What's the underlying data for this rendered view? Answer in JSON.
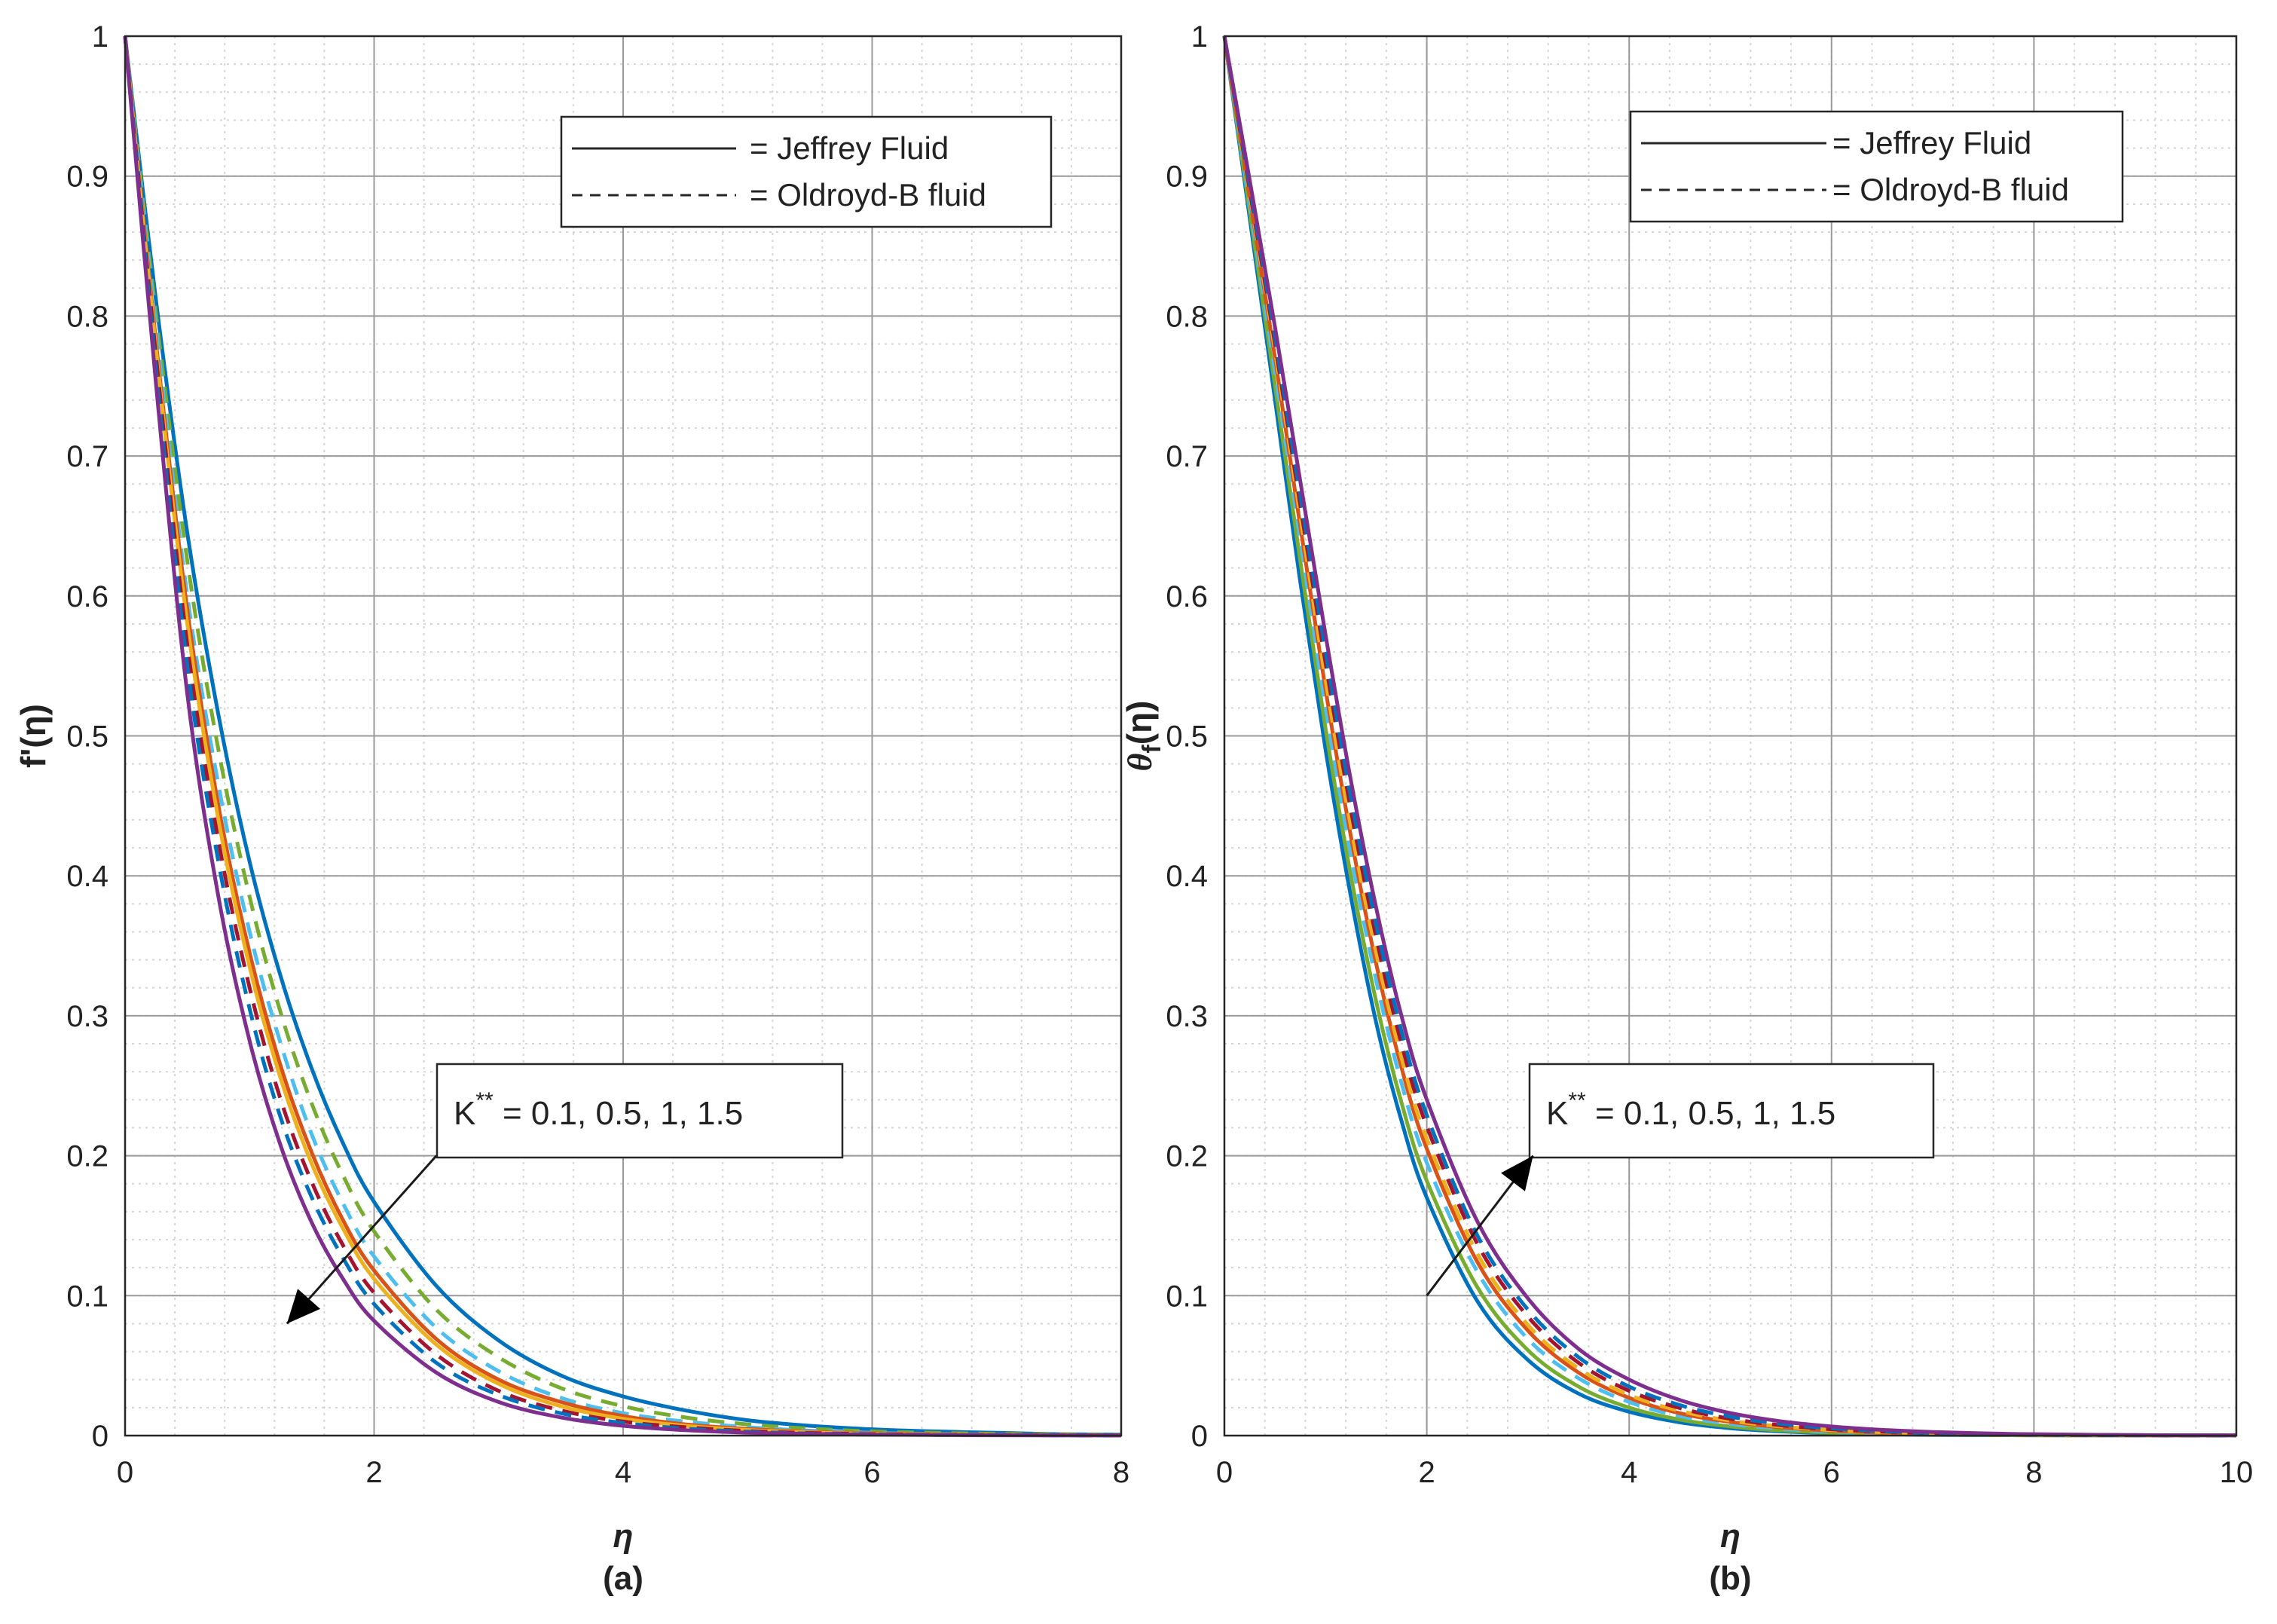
{
  "figure": {
    "panels": [
      "(a)",
      "(b)"
    ]
  },
  "chart_data": [
    {
      "type": "line",
      "panel_label": "(a)",
      "title": "",
      "xlabel": "η",
      "ylabel": "f'(η)",
      "xlim": [
        0,
        8
      ],
      "ylim": [
        0,
        1
      ],
      "xticks": [
        0,
        2,
        4,
        6,
        8
      ],
      "yticks": [
        0,
        0.1,
        0.2,
        0.3,
        0.4,
        0.5,
        0.6,
        0.7,
        0.8,
        0.9,
        1
      ],
      "grid": true,
      "minor_grid": true,
      "legend": {
        "position": "top-right",
        "entries": [
          {
            "style": "solid",
            "label": "= Jeffrey Fluid"
          },
          {
            "style": "dashed",
            "label": "= Oldroyd-B fluid"
          }
        ]
      },
      "annotation": {
        "text": "K** = 0.1, 0.5, 1, 1.5",
        "base": "K",
        "sup": "**",
        "rest": " = 0.1, 0.5, 1, 1.5",
        "arrow_from": [
          2.5,
          0.2
        ],
        "arrow_to": [
          1.3,
          0.08
        ]
      },
      "x": [
        0,
        0.25,
        0.5,
        0.75,
        1,
        1.25,
        1.5,
        1.75,
        2,
        2.5,
        3,
        3.5,
        4,
        4.5,
        5,
        5.5,
        6,
        6.5,
        7,
        7.5,
        8
      ],
      "series": [
        {
          "name": "Jeffrey K**=0.1",
          "style": "solid",
          "color": "#0072bd",
          "values": [
            1,
            0.81,
            0.645,
            0.515,
            0.41,
            0.328,
            0.262,
            0.209,
            0.167,
            0.107,
            0.068,
            0.043,
            0.028,
            0.018,
            0.011,
            0.007,
            0.0045,
            0.003,
            0.002,
            0.001,
            0.0007
          ]
        },
        {
          "name": "Oldroyd-B K**=0.1",
          "style": "dashed",
          "color": "#77ac30",
          "values": [
            1,
            0.8,
            0.625,
            0.49,
            0.385,
            0.302,
            0.237,
            0.186,
            0.146,
            0.09,
            0.056,
            0.034,
            0.021,
            0.013,
            0.008,
            0.005,
            0.003,
            0.002,
            0.0012,
            0.0008,
            0.0005
          ]
        },
        {
          "name": "Oldroyd-B K**=0.5",
          "style": "dashed",
          "color": "#4dbeee",
          "values": [
            1,
            0.79,
            0.6,
            0.465,
            0.36,
            0.28,
            0.215,
            0.166,
            0.128,
            0.077,
            0.046,
            0.027,
            0.016,
            0.01,
            0.006,
            0.0035,
            0.002,
            0.0012,
            0.0007,
            0.0004,
            0.0003
          ]
        },
        {
          "name": "Jeffrey K**=0.5",
          "style": "solid",
          "color": "#d95319",
          "values": [
            1,
            0.78,
            0.59,
            0.45,
            0.345,
            0.264,
            0.202,
            0.154,
            0.118,
            0.069,
            0.04,
            0.024,
            0.014,
            0.008,
            0.0048,
            0.0028,
            0.0016,
            0.001,
            0.0006,
            0.0004,
            0.0002
          ]
        },
        {
          "name": "Jeffrey K**=1",
          "style": "solid",
          "color": "#edb120",
          "values": [
            1,
            0.775,
            0.58,
            0.44,
            0.335,
            0.255,
            0.194,
            0.148,
            0.112,
            0.065,
            0.037,
            0.021,
            0.012,
            0.007,
            0.004,
            0.0023,
            0.0013,
            0.0008,
            0.0005,
            0.0003,
            0.0002
          ]
        },
        {
          "name": "Oldroyd-B K**=1",
          "style": "dashed",
          "color": "#a2142f",
          "values": [
            1,
            0.77,
            0.565,
            0.425,
            0.32,
            0.24,
            0.181,
            0.136,
            0.102,
            0.058,
            0.032,
            0.018,
            0.01,
            0.006,
            0.0033,
            0.0019,
            0.0011,
            0.0006,
            0.0004,
            0.0002,
            0.0001
          ]
        },
        {
          "name": "Oldroyd-B K**=1.5",
          "style": "dashed",
          "color": "#0072bd",
          "values": [
            1,
            0.76,
            0.55,
            0.41,
            0.305,
            0.227,
            0.17,
            0.127,
            0.094,
            0.052,
            0.029,
            0.016,
            0.009,
            0.005,
            0.0028,
            0.0015,
            0.0009,
            0.0005,
            0.0003,
            0.0002,
            0.0001
          ]
        },
        {
          "name": "Jeffrey K**=1.5",
          "style": "solid",
          "color": "#7e2f8e",
          "values": [
            1,
            0.75,
            0.53,
            0.385,
            0.282,
            0.207,
            0.152,
            0.112,
            0.082,
            0.045,
            0.024,
            0.013,
            0.007,
            0.0039,
            0.0021,
            0.0012,
            0.0007,
            0.0004,
            0.0002,
            0.0001,
            0.0001
          ]
        }
      ]
    },
    {
      "type": "line",
      "panel_label": "(b)",
      "title": "",
      "xlabel": "η",
      "ylabel": "θf(η)",
      "xlim": [
        0,
        10
      ],
      "ylim": [
        0,
        1
      ],
      "xticks": [
        0,
        2,
        4,
        6,
        8,
        10
      ],
      "yticks": [
        0,
        0.1,
        0.2,
        0.3,
        0.4,
        0.5,
        0.6,
        0.7,
        0.8,
        0.9,
        1
      ],
      "grid": true,
      "minor_grid": true,
      "legend": {
        "position": "top-right",
        "entries": [
          {
            "style": "solid",
            "label": "= Jeffrey Fluid"
          },
          {
            "style": "dashed",
            "label": "= Oldroyd-B fluid"
          }
        ]
      },
      "annotation": {
        "text": "K** = 0.1, 0.5, 1, 1.5",
        "base": "K",
        "sup": "**",
        "rest": " = 0.1, 0.5, 1, 1.5",
        "arrow_from": [
          2,
          0.1
        ],
        "arrow_to": [
          3.05,
          0.2
        ]
      },
      "x": [
        0,
        0.25,
        0.5,
        0.75,
        1,
        1.25,
        1.5,
        1.75,
        2,
        2.5,
        3,
        3.5,
        4,
        4.5,
        5,
        5.5,
        6,
        6.5,
        7,
        7.5,
        8,
        9,
        10
      ],
      "series": [
        {
          "name": "Jeffrey K**=0.1",
          "style": "solid",
          "color": "#0072bd",
          "values": [
            1,
            0.87,
            0.74,
            0.61,
            0.49,
            0.385,
            0.295,
            0.225,
            0.17,
            0.096,
            0.054,
            0.03,
            0.017,
            0.0095,
            0.0053,
            0.003,
            0.0017,
            0.001,
            0.0005,
            0.0003,
            0.0002,
            0.0001,
            0
          ]
        },
        {
          "name": "Jeffrey K**=0.5",
          "style": "solid",
          "color": "#77ac30",
          "values": [
            1,
            0.875,
            0.75,
            0.625,
            0.505,
            0.4,
            0.31,
            0.238,
            0.182,
            0.106,
            0.061,
            0.035,
            0.02,
            0.0114,
            0.0065,
            0.0037,
            0.0021,
            0.0012,
            0.0007,
            0.0004,
            0.0002,
            0.0001,
            0
          ]
        },
        {
          "name": "Oldroyd-B K**=0.1",
          "style": "dashed",
          "color": "#4dbeee",
          "values": [
            1,
            0.88,
            0.76,
            0.64,
            0.52,
            0.415,
            0.325,
            0.252,
            0.195,
            0.117,
            0.069,
            0.041,
            0.024,
            0.014,
            0.0083,
            0.0049,
            0.0029,
            0.0017,
            0.001,
            0.0006,
            0.0003,
            0.0001,
            0
          ]
        },
        {
          "name": "Jeffrey K**=1",
          "style": "solid",
          "color": "#d95319",
          "values": [
            1,
            0.885,
            0.77,
            0.65,
            0.533,
            0.428,
            0.337,
            0.263,
            0.205,
            0.124,
            0.075,
            0.045,
            0.027,
            0.016,
            0.0098,
            0.0059,
            0.0035,
            0.0021,
            0.0013,
            0.0008,
            0.0005,
            0.0002,
            0.0001
          ]
        },
        {
          "name": "Oldroyd-B K**=0.5",
          "style": "dashed",
          "color": "#edb120",
          "values": [
            1,
            0.887,
            0.775,
            0.657,
            0.54,
            0.435,
            0.345,
            0.27,
            0.212,
            0.13,
            0.079,
            0.048,
            0.029,
            0.0177,
            0.0107,
            0.0065,
            0.0039,
            0.0024,
            0.0015,
            0.0009,
            0.0005,
            0.0002,
            0.0001
          ]
        },
        {
          "name": "Oldroyd-B K**=1",
          "style": "dashed",
          "color": "#a2142f",
          "values": [
            1,
            0.89,
            0.78,
            0.665,
            0.552,
            0.447,
            0.356,
            0.28,
            0.221,
            0.137,
            0.085,
            0.052,
            0.032,
            0.0197,
            0.012,
            0.0074,
            0.0045,
            0.0028,
            0.0017,
            0.001,
            0.0006,
            0.0002,
            0.0001
          ]
        },
        {
          "name": "Oldroyd-B K**=1.5",
          "style": "dashed",
          "color": "#0072bd",
          "values": [
            1,
            0.893,
            0.785,
            0.672,
            0.56,
            0.456,
            0.365,
            0.289,
            0.229,
            0.143,
            0.09,
            0.056,
            0.035,
            0.0218,
            0.0135,
            0.0084,
            0.0052,
            0.0032,
            0.002,
            0.0012,
            0.0008,
            0.0003,
            0.0001
          ]
        },
        {
          "name": "Jeffrey K**=1.5",
          "style": "solid",
          "color": "#7e2f8e",
          "values": [
            1,
            0.897,
            0.792,
            0.682,
            0.572,
            0.468,
            0.377,
            0.3,
            0.24,
            0.153,
            0.098,
            0.062,
            0.04,
            0.0254,
            0.0161,
            0.0102,
            0.0065,
            0.0041,
            0.0026,
            0.0016,
            0.001,
            0.0004,
            0.0002
          ]
        }
      ]
    }
  ]
}
